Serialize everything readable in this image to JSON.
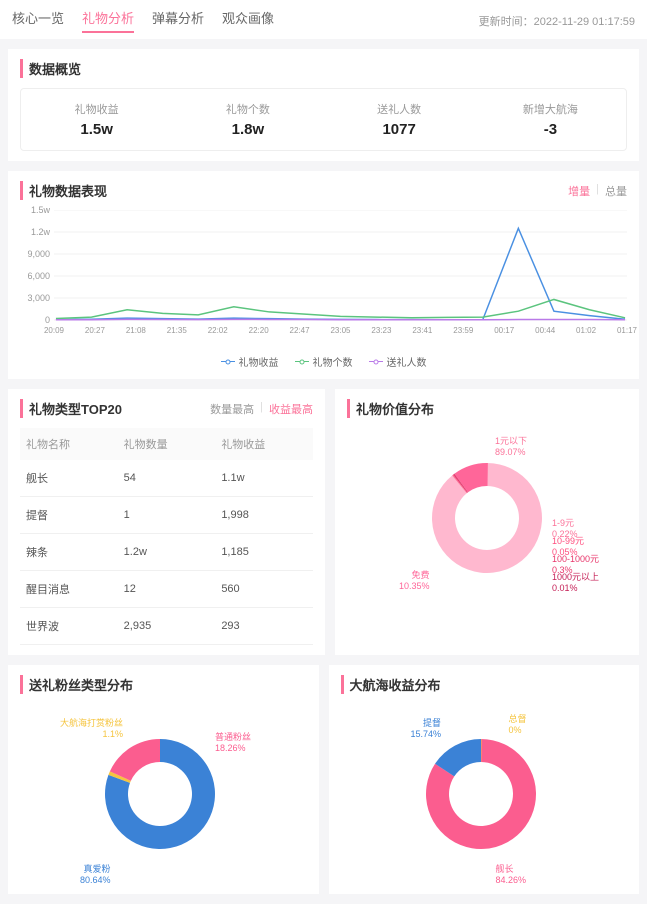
{
  "header": {
    "tabs": [
      "核心一览",
      "礼物分析",
      "弹幕分析",
      "观众画像"
    ],
    "active_tab_index": 1,
    "update_label": "更新时间：",
    "update_time": "2022-11-29 01:17:59"
  },
  "overview": {
    "title": "数据概览",
    "stats": [
      {
        "label": "礼物收益",
        "value": "1.5w"
      },
      {
        "label": "礼物个数",
        "value": "1.8w"
      },
      {
        "label": "送礼人数",
        "value": "1077"
      },
      {
        "label": "新增大航海",
        "value": "-3"
      }
    ]
  },
  "performance": {
    "title": "礼物数据表现",
    "toggle": {
      "options": [
        "增量",
        "总量"
      ],
      "active_index": 0,
      "active_color": "#fb7299",
      "inactive_color": "#999"
    },
    "y_ticks": [
      "0",
      "3,000",
      "6,000",
      "9,000",
      "1.2w",
      "1.5w"
    ],
    "x_ticks": [
      "20:09",
      "20:27",
      "21:08",
      "21:35",
      "22:02",
      "22:20",
      "22:47",
      "23:05",
      "23:23",
      "23:41",
      "23:59",
      "00:17",
      "00:44",
      "01:02",
      "01:17"
    ],
    "series": [
      {
        "name": "礼物收益",
        "color": "#4a90e2",
        "points": [
          50,
          100,
          250,
          180,
          120,
          250,
          180,
          120,
          80,
          60,
          50,
          30,
          50,
          12500,
          1200,
          600,
          100
        ]
      },
      {
        "name": "礼物个数",
        "color": "#5bc47e",
        "points": [
          200,
          400,
          1400,
          900,
          700,
          1800,
          1100,
          800,
          500,
          400,
          300,
          350,
          400,
          1200,
          2800,
          1400,
          300
        ]
      },
      {
        "name": "送礼人数",
        "color": "#b97ae8",
        "points": [
          30,
          40,
          80,
          60,
          50,
          90,
          70,
          60,
          40,
          30,
          30,
          30,
          40,
          60,
          70,
          60,
          40
        ]
      }
    ],
    "y_max": 15000,
    "grid_color": "#f0f0f0",
    "axis_color": "#ddd"
  },
  "top20": {
    "title": "礼物类型TOP20",
    "toggle": {
      "options": [
        "数量最高",
        "收益最高"
      ],
      "active_index": 1,
      "active_color": "#fb7299"
    },
    "columns": [
      "礼物名称",
      "礼物数量",
      "礼物收益"
    ],
    "rows": [
      [
        "舰长",
        "54",
        "1.1w"
      ],
      [
        "提督",
        "1",
        "1,998"
      ],
      [
        "辣条",
        "1.2w",
        "1,185"
      ],
      [
        "醒目消息",
        "12",
        "560"
      ],
      [
        "世界波",
        "2,935",
        "293"
      ]
    ]
  },
  "value_dist": {
    "title": "礼物价值分布",
    "segments": [
      {
        "label": "1元以下",
        "pct": "89.07%",
        "color": "#ffb8cf",
        "angle": 320.7
      },
      {
        "label": "1-9元",
        "pct": "0.22%",
        "color": "#fb7299",
        "angle": 0.8
      },
      {
        "label": "10-99元",
        "pct": "0.05%",
        "color": "#ff4d7e",
        "angle": 0.2
      },
      {
        "label": "100-1000元",
        "pct": "0.3%",
        "color": "#e8356a",
        "angle": 1.1
      },
      {
        "label": "1000元以上",
        "pct": "0.01%",
        "color": "#c41e55",
        "angle": 0.04
      },
      {
        "label": "免费",
        "pct": "10.35%",
        "color": "#ff6699",
        "angle": 37.3
      }
    ],
    "label_colors": {
      "primary": "#fb7299"
    }
  },
  "fan_dist": {
    "title": "送礼粉丝类型分布",
    "segments": [
      {
        "label": "真爱粉",
        "pct": "80.64%",
        "color": "#3b82d6",
        "angle": 290.3
      },
      {
        "label": "大航海打赏粉丝",
        "pct": "1.1%",
        "color": "#f5c43e",
        "angle": 4.0
      },
      {
        "label": "普通粉丝",
        "pct": "18.26%",
        "color": "#fb5d8f",
        "angle": 65.7
      }
    ]
  },
  "voyage_dist": {
    "title": "大航海收益分布",
    "segments": [
      {
        "label": "舰长",
        "pct": "84.26%",
        "color": "#fb5d8f",
        "angle": 303.3
      },
      {
        "label": "提督",
        "pct": "15.74%",
        "color": "#3b82d6",
        "angle": 56.7
      },
      {
        "label": "总督",
        "pct": "0%",
        "color": "#f5c43e",
        "angle": 0
      }
    ]
  }
}
